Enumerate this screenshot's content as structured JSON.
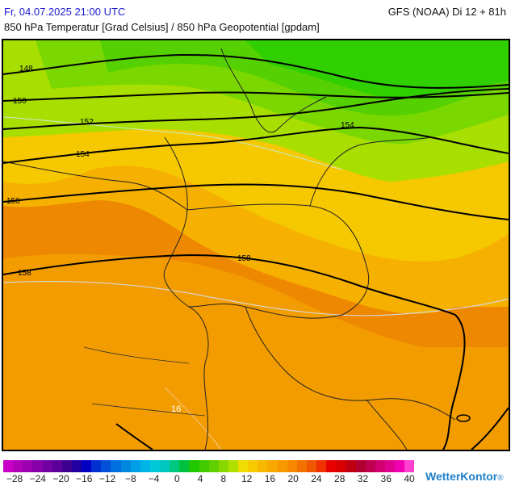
{
  "header": {
    "date": "Fr, 04.07.2025 21:00 UTC",
    "model": "GFS (NOAA) Di 12 + 81h",
    "subtitle": "850 hPa Temperatur [Grad Celsius] / 850 hPa Geopotential [gpdam]"
  },
  "map": {
    "fill_colors": {
      "band_12_14": "#2fcf00",
      "band_10_12": "#55d000",
      "band_8_10": "#7ad800",
      "band_6_8": "#a8de00",
      "band_4_6": "#f6c800",
      "band_2_4": "#f6b000",
      "band_0_2": "#f39c00",
      "band_warm": "#ee8800"
    },
    "contour_labels": [
      "148",
      "150",
      "152",
      "154",
      "156",
      "158",
      "154",
      "158"
    ],
    "isotherm_label": "16"
  },
  "colorbar": {
    "colors": [
      "#c800c8",
      "#b000b8",
      "#9c00b0",
      "#8800a8",
      "#7000a0",
      "#5a0098",
      "#3c0090",
      "#2000a0",
      "#0000c0",
      "#0030d0",
      "#0050d8",
      "#0070e0",
      "#0088e0",
      "#00a0e8",
      "#00b4e8",
      "#00c8d8",
      "#00c8c0",
      "#00c880",
      "#00c040",
      "#20c800",
      "#40cc00",
      "#60d000",
      "#88d800",
      "#b0e000",
      "#f0dc00",
      "#f8c800",
      "#f8b800",
      "#f8a800",
      "#f89800",
      "#f88800",
      "#f47000",
      "#f05800",
      "#f03000",
      "#e80000",
      "#d80000",
      "#c00010",
      "#b00030",
      "#c00050",
      "#d00070",
      "#e00090",
      "#f000b0",
      "#ff40d0"
    ],
    "tick_labels": [
      "−28",
      "−24",
      "−20",
      "−16",
      "−12",
      "−8",
      "−4",
      "0",
      "4",
      "8",
      "12",
      "16",
      "20",
      "24",
      "28",
      "32",
      "36",
      "40"
    ]
  },
  "brand": {
    "name": "WetterKontor",
    "suffix": "®"
  }
}
